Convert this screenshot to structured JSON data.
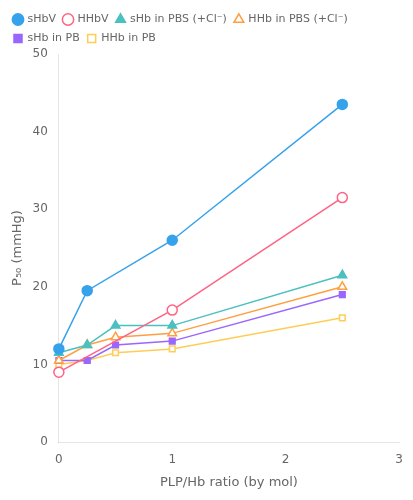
{
  "chart_data": {
    "type": "line",
    "xlabel": "PLP/Hb ratio (by mol)",
    "ylabel": "P₅₀ (mmHg)",
    "xlim": [
      0,
      3
    ],
    "ylim": [
      0,
      50
    ],
    "xticks": [
      0,
      1,
      2,
      3
    ],
    "yticks": [
      0,
      10,
      20,
      30,
      40,
      50
    ],
    "grid": false,
    "legend": "upper left",
    "series": [
      {
        "name": "sHbV",
        "marker": "circle",
        "x": [
          0,
          0.25,
          1.0,
          2.5
        ],
        "values": [
          12.0,
          19.5,
          26.0,
          43.5
        ]
      },
      {
        "name": "HHbV",
        "marker": "circle-open",
        "x": [
          0,
          1.0,
          2.5
        ],
        "values": [
          9.0,
          17.0,
          31.5
        ]
      },
      {
        "name": "sHb in PBS (+Cl⁻)",
        "marker": "triangle",
        "x": [
          0,
          0.25,
          0.5,
          1.0,
          2.5
        ],
        "values": [
          11.5,
          12.5,
          15.0,
          15.0,
          21.5
        ]
      },
      {
        "name": "HHb in PBS (+Cl⁻)",
        "marker": "triangle-open",
        "x": [
          0,
          0.25,
          0.5,
          1.0,
          2.5
        ],
        "values": [
          10.5,
          12.5,
          13.5,
          14.0,
          20.0
        ]
      },
      {
        "name": "sHb in PB",
        "marker": "square",
        "x": [
          0,
          0.25,
          0.5,
          1.0,
          2.5
        ],
        "values": [
          10.5,
          10.5,
          12.5,
          13.0,
          19.0
        ]
      },
      {
        "name": "HHb in PB",
        "marker": "square-open",
        "x": [
          0,
          0.25,
          0.5,
          1.0,
          2.5
        ],
        "values": [
          10.0,
          10.5,
          11.5,
          12.0,
          16.0
        ]
      }
    ]
  }
}
